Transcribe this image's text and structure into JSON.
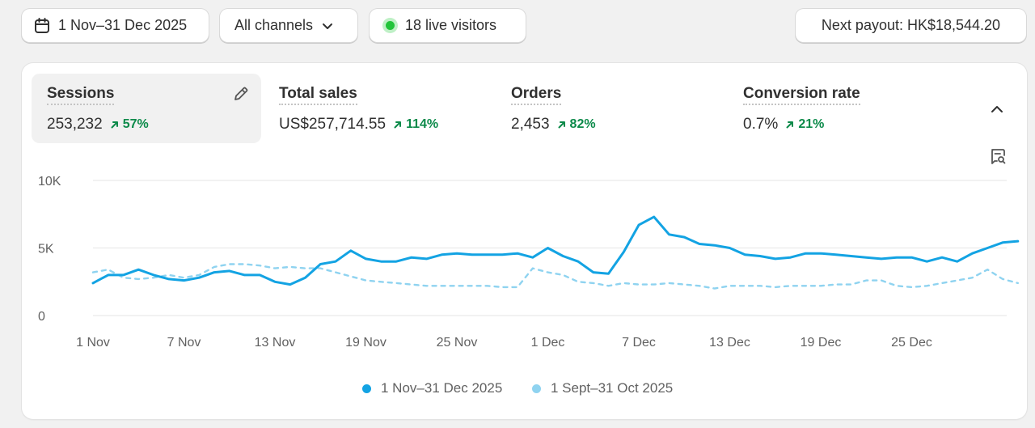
{
  "toolbar": {
    "date_range": "1 Nov–31 Dec 2025",
    "channels": "All channels",
    "live_visitors": "18 live visitors",
    "payout": "Next payout: HK$18,544.20"
  },
  "metrics": [
    {
      "title": "Sessions",
      "value": "253,232",
      "change": "57%"
    },
    {
      "title": "Total sales",
      "value": "US$257,714.55",
      "change": "114%"
    },
    {
      "title": "Orders",
      "value": "2,453",
      "change": "82%"
    },
    {
      "title": "Conversion rate",
      "value": "0.7%",
      "change": "21%"
    }
  ],
  "colors": {
    "current": "#13a3e3",
    "previous": "#8fd3f0",
    "positive": "#0c8a4a",
    "live": "#22c43a"
  },
  "icons": [
    "calendar-icon",
    "chevron-down-icon",
    "pencil-icon",
    "chevron-up-icon",
    "chat-search-icon",
    "arrow-up-right-icon"
  ],
  "chart_data": {
    "type": "line",
    "ylim": [
      0,
      10000
    ],
    "y_ticks": [
      {
        "v": 0,
        "label": "0"
      },
      {
        "v": 5000,
        "label": "5K"
      },
      {
        "v": 10000,
        "label": "10K"
      }
    ],
    "x_tick_labels": [
      {
        "day": 0,
        "label": "1 Nov"
      },
      {
        "day": 6,
        "label": "7 Nov"
      },
      {
        "day": 12,
        "label": "13 Nov"
      },
      {
        "day": 18,
        "label": "19 Nov"
      },
      {
        "day": 24,
        "label": "25 Nov"
      },
      {
        "day": 30,
        "label": "1 Dec"
      },
      {
        "day": 36,
        "label": "7 Dec"
      },
      {
        "day": 42,
        "label": "13 Dec"
      },
      {
        "day": 48,
        "label": "19 Dec"
      },
      {
        "day": 54,
        "label": "25 Dec"
      }
    ],
    "grid": true,
    "legend_position": "bottom-center",
    "series": [
      {
        "name": "1 Nov–31 Dec 2025",
        "style": "solid",
        "values": [
          2400,
          3000,
          3000,
          3400,
          3000,
          2700,
          2600,
          2800,
          3200,
          3300,
          3000,
          3000,
          2500,
          2300,
          2800,
          3800,
          4000,
          4800,
          4200,
          4000,
          4000,
          4300,
          4200,
          4500,
          4600,
          4500,
          4500,
          4500,
          4600,
          4300,
          5000,
          4400,
          4000,
          3200,
          3100,
          4700,
          6700,
          7300,
          6000,
          5800,
          5300,
          5200,
          5000,
          4500,
          4400,
          4200,
          4300,
          4600,
          4600,
          4500,
          4400,
          4300,
          4200,
          4300,
          4300,
          4000,
          4300,
          4000,
          4600,
          5000,
          5400,
          5500
        ]
      },
      {
        "name": "1 Sept–31 Oct 2025",
        "style": "dashed",
        "values": [
          3200,
          3400,
          2800,
          2700,
          2800,
          3000,
          2800,
          3000,
          3600,
          3800,
          3800,
          3700,
          3500,
          3600,
          3500,
          3500,
          3200,
          2900,
          2600,
          2500,
          2400,
          2300,
          2200,
          2200,
          2200,
          2200,
          2200,
          2100,
          2100,
          3500,
          3200,
          3000,
          2500,
          2400,
          2200,
          2400,
          2300,
          2300,
          2400,
          2300,
          2200,
          2000,
          2200,
          2200,
          2200,
          2100,
          2200,
          2200,
          2200,
          2300,
          2300,
          2600,
          2600,
          2200,
          2100,
          2200,
          2400,
          2600,
          2800,
          3400,
          2700,
          2400
        ]
      }
    ]
  }
}
